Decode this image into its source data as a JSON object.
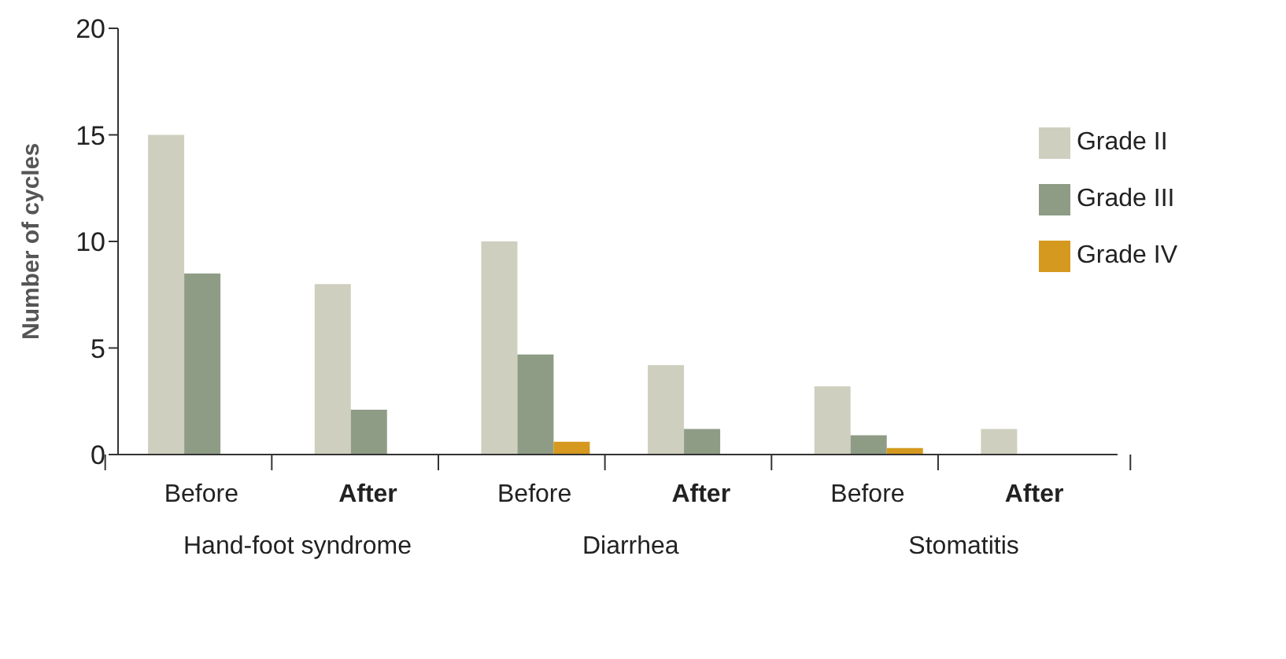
{
  "chart_data": {
    "type": "bar",
    "ylabel": "Number of cycles",
    "categories": [
      "Before",
      "After",
      "Before",
      "After",
      "Before",
      "After"
    ],
    "series": [
      {
        "name": "Grade II",
        "color": "#cfcfbf",
        "values": [
          15,
          8,
          10,
          4.2,
          3.2,
          1.2
        ]
      },
      {
        "name": "Grade III",
        "color": "#8e9c86",
        "values": [
          8.5,
          2.1,
          4.7,
          1.2,
          0.9,
          0
        ]
      },
      {
        "name": "Grade IV",
        "color": "#d4991e",
        "values": [
          0,
          0,
          0.6,
          0,
          0.3,
          0
        ]
      }
    ],
    "ylim": [
      0,
      20
    ],
    "yticks": [
      0,
      5,
      10,
      15,
      20
    ],
    "grid": false,
    "legend": "top right",
    "annotations": [
      "Hand-foot syndrome",
      "Diarrhea",
      "Stomatitis"
    ]
  }
}
